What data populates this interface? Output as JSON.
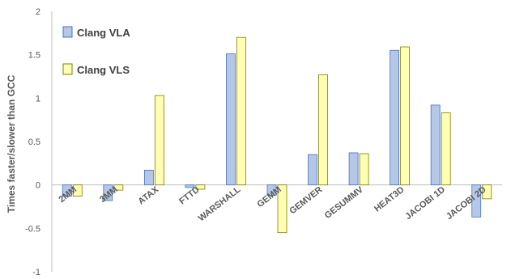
{
  "chart_data": {
    "type": "bar",
    "title": "",
    "xlabel": "",
    "ylabel": "Times faster/slower than GCC",
    "ylim": [
      -1,
      2
    ],
    "yticks": [
      "-1",
      "-0.5",
      "0",
      "0.5",
      "1",
      "1.5",
      "2"
    ],
    "grid": false,
    "legend_position": "top-left",
    "categories": [
      "2MM",
      "3MM",
      "ATAX",
      "FTTD",
      "WARSHALL",
      "GEMM",
      "GEMVER",
      "GESUMMV",
      "HEAT3D",
      "JACOBI 1D",
      "JACOBI 2D"
    ],
    "series": [
      {
        "name": "Clang VLA",
        "color": "#b4c7e7",
        "values": [
          -0.13,
          -0.18,
          0.17,
          -0.03,
          1.51,
          -0.12,
          0.35,
          0.37,
          1.55,
          0.92,
          -0.37
        ]
      },
      {
        "name": "Clang VLS",
        "color": "#ffffb3",
        "values": [
          -0.13,
          -0.06,
          1.03,
          -0.05,
          1.7,
          -0.55,
          1.27,
          0.36,
          1.59,
          0.83,
          -0.16
        ]
      }
    ]
  }
}
